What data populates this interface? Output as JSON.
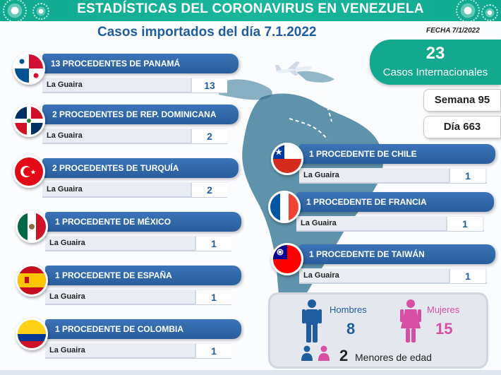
{
  "header": {
    "title": "ESTADÍSTICAS DEL CORONAVIRUS EN VENEZUELA",
    "subtitle": "Casos importados del día 7.1.2022",
    "fecha": "FECHA 7/1/2022"
  },
  "summary": {
    "total": "23",
    "total_label": "Casos Internacionales",
    "semana": "Semana 95",
    "dia": "Día 663",
    "brand_color": "#13a98e"
  },
  "countries_left": [
    {
      "label": "13 PROCEDENTES DE PANAMÁ",
      "city": "La Guaira",
      "count": "13",
      "flag": "panama-flag-icon"
    },
    {
      "label": "2 PROCEDENTES DE REP. DOMINICANA",
      "city": "La Guaira",
      "count": "2",
      "flag": "dominican-republic-flag-icon"
    },
    {
      "label": "2 PROCEDENTES DE TURQUÍA",
      "city": "La Guaira",
      "count": "2",
      "flag": "turkey-flag-icon"
    },
    {
      "label": "1 PROCEDENTE DE MÉXICO",
      "city": "La Guaira",
      "count": "1",
      "flag": "mexico-flag-icon"
    },
    {
      "label": "1 PROCEDENTE DE ESPAÑA",
      "city": "La Guaira",
      "count": "1",
      "flag": "spain-flag-icon"
    },
    {
      "label": "1 PROCEDENTE DE COLOMBIA",
      "city": "La Guaira",
      "count": "1",
      "flag": "colombia-flag-icon"
    }
  ],
  "countries_right": [
    {
      "label": "1 PROCEDENTE DE CHILE",
      "city": "La Guaira",
      "count": "1",
      "flag": "chile-flag-icon"
    },
    {
      "label": "1 PROCEDENTE DE FRANCIA",
      "city": "La Guaira",
      "count": "1",
      "flag": "france-flag-icon"
    },
    {
      "label": "1 PROCEDENTE DE TAIWÁN",
      "city": "La Guaira",
      "count": "1",
      "flag": "taiwan-flag-icon"
    }
  ],
  "gender": {
    "men_label": "Hombres",
    "men_count": "8",
    "men_color": "#1f5d9f",
    "women_label": "Mujeres",
    "women_count": "15",
    "women_color": "#d64fa3",
    "minors_count": "2",
    "minors_label": "Menores de edad"
  }
}
